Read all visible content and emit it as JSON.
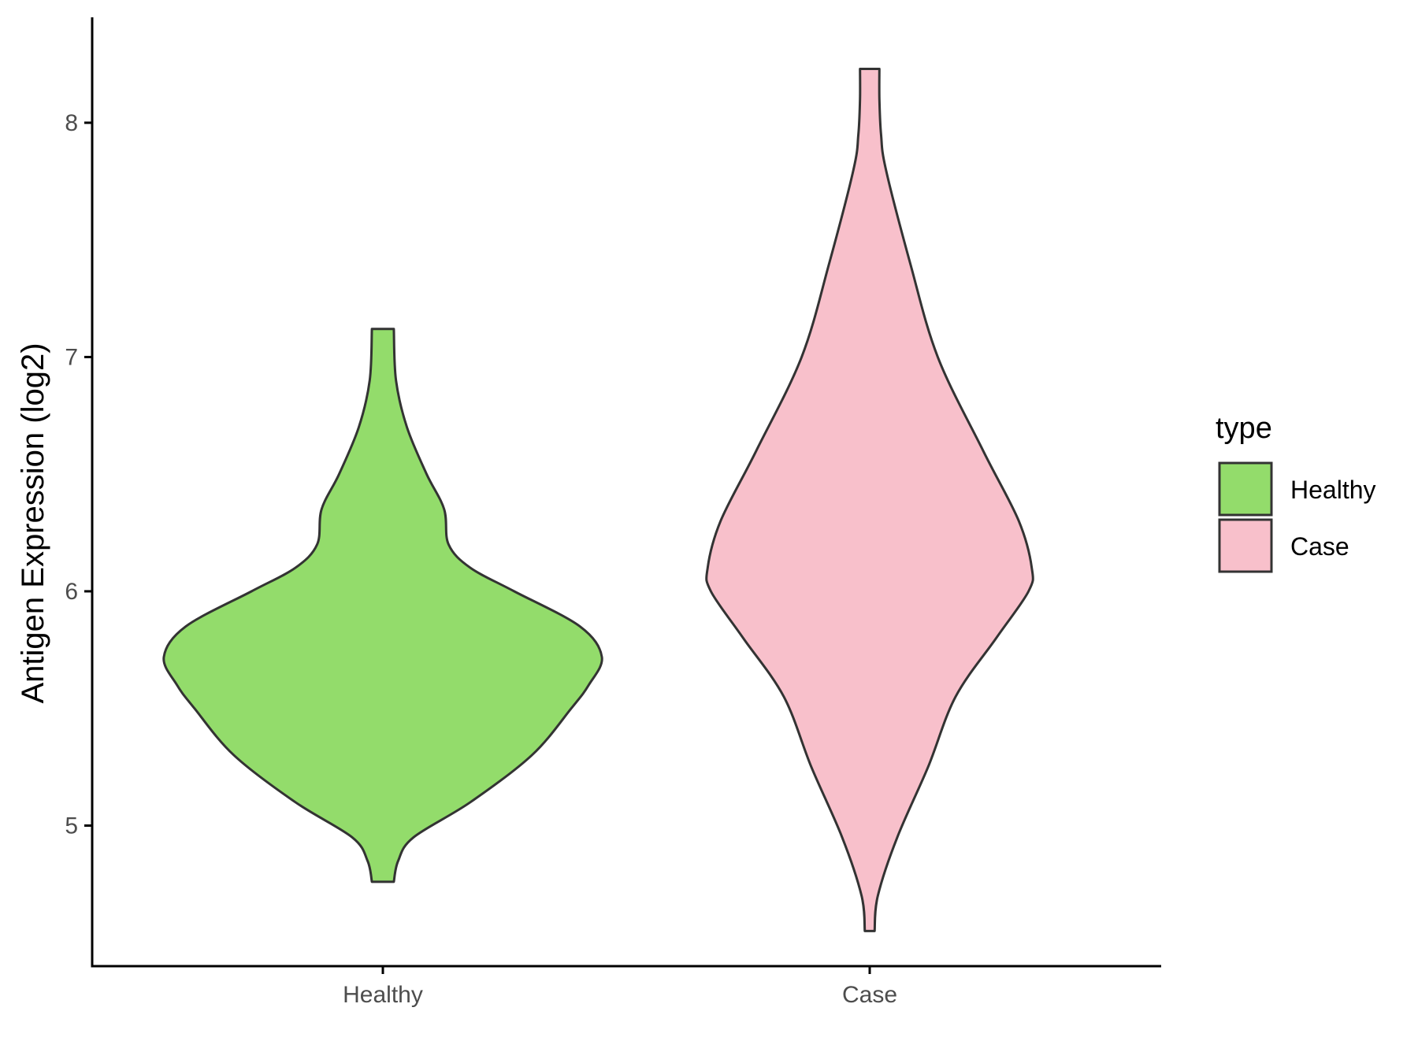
{
  "chart_data": {
    "type": "violin",
    "title": "",
    "xlabel": "",
    "ylabel": "Antigen Expression (log2)",
    "categories": [
      "Healthy",
      "Case"
    ],
    "ylim": [
      4.4,
      8.45
    ],
    "yticks": [
      5,
      6,
      7,
      8
    ],
    "grid": false,
    "legend": {
      "title": "type",
      "placement": "right",
      "entries": [
        {
          "label": "Healthy",
          "color": "#93DC6B"
        },
        {
          "label": "Case",
          "color": "#F8C0CB"
        }
      ]
    },
    "series": [
      {
        "category": "Healthy",
        "fill": "#93DC6B",
        "min": 4.76,
        "max": 7.12,
        "density_profile": [
          [
            4.76,
            0.05
          ],
          [
            4.85,
            0.07
          ],
          [
            4.95,
            0.14
          ],
          [
            5.1,
            0.4
          ],
          [
            5.3,
            0.68
          ],
          [
            5.5,
            0.86
          ],
          [
            5.6,
            0.94
          ],
          [
            5.72,
            1.0
          ],
          [
            5.85,
            0.9
          ],
          [
            6.0,
            0.6
          ],
          [
            6.1,
            0.4
          ],
          [
            6.2,
            0.3
          ],
          [
            6.35,
            0.28
          ],
          [
            6.5,
            0.2
          ],
          [
            6.7,
            0.11
          ],
          [
            6.9,
            0.06
          ],
          [
            7.12,
            0.05
          ]
        ]
      },
      {
        "category": "Case",
        "fill": "#F8C0CB",
        "min": 4.55,
        "max": 8.23,
        "density_profile": [
          [
            4.55,
            0.03
          ],
          [
            4.7,
            0.05
          ],
          [
            4.95,
            0.17
          ],
          [
            5.25,
            0.36
          ],
          [
            5.55,
            0.53
          ],
          [
            5.8,
            0.78
          ],
          [
            6.0,
            0.98
          ],
          [
            6.1,
            1.0
          ],
          [
            6.3,
            0.92
          ],
          [
            6.6,
            0.7
          ],
          [
            7.0,
            0.42
          ],
          [
            7.4,
            0.25
          ],
          [
            7.8,
            0.1
          ],
          [
            7.95,
            0.07
          ],
          [
            8.1,
            0.06
          ],
          [
            8.23,
            0.06
          ]
        ]
      }
    ]
  }
}
